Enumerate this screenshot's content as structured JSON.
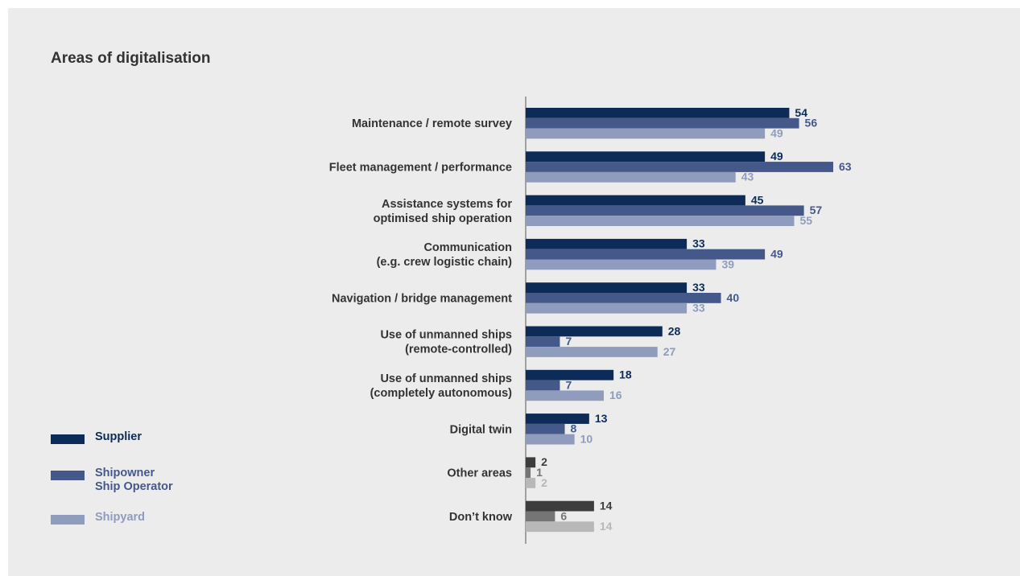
{
  "colors": {
    "supplier": "#0c2b57",
    "shipowner": "#44588a",
    "shipyard": "#8f9cbe",
    "other_supplier": "#3d3d3d",
    "other_shipowner": "#757575",
    "other_shipyard": "#b8b8b8"
  },
  "legend": [
    {
      "label": "Supplier",
      "color": "#0c2b57"
    },
    {
      "label": "Shipowner\nShip Operator",
      "color": "#44588a"
    },
    {
      "label": "Shipyard",
      "color": "#8f9cbe"
    }
  ],
  "chart_data": {
    "type": "bar",
    "orientation": "horizontal",
    "title": "Areas of digitalisation",
    "categories": [
      "Maintenance / remote survey",
      "Fleet management / performance",
      "Assistance systems for\noptimised ship operation",
      "Communication\n(e.g. crew logistic chain)",
      "Navigation / bridge management",
      "Use of unmanned ships\n(remote-controlled)",
      "Use of unmanned ships\n(completely autonomous)",
      "Digital twin",
      "Other areas",
      "Don’t know"
    ],
    "series": [
      {
        "name": "Supplier",
        "values": [
          54,
          49,
          45,
          33,
          33,
          28,
          18,
          13,
          2,
          14
        ]
      },
      {
        "name": "Shipowner Ship Operator",
        "values": [
          56,
          63,
          57,
          49,
          40,
          7,
          7,
          8,
          1,
          6
        ]
      },
      {
        "name": "Shipyard",
        "values": [
          49,
          43,
          55,
          39,
          33,
          27,
          16,
          10,
          2,
          14
        ]
      }
    ],
    "grey_categories": [
      "Other areas",
      "Don’t know"
    ],
    "xlim": [
      0,
      63
    ],
    "grid": false,
    "legend_position": "bottom-left"
  }
}
